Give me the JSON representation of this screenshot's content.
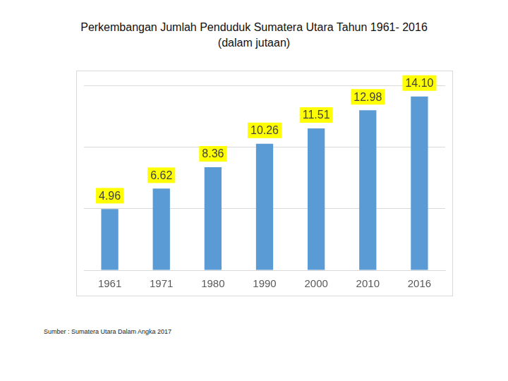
{
  "chart_data": {
    "type": "bar",
    "title": "Perkembangan Jumlah Penduduk  Sumatera Utara  Tahun 1961- 2016",
    "subtitle": "(dalam jutaan)",
    "annotations": [
      "Sumber : Sumatera Utara Dalam Angka 2017"
    ],
    "categories": [
      "1961",
      "1971",
      "1980",
      "1990",
      "2000",
      "2010",
      "2016"
    ],
    "values": [
      4.96,
      6.62,
      8.36,
      10.26,
      11.51,
      12.98,
      14.1
    ],
    "value_labels": [
      "4.96",
      "6.62",
      "8.36",
      "10.26",
      "11.51",
      "12.98",
      "14.10"
    ],
    "color": "#5b9bd5",
    "ylim": [
      0,
      15
    ],
    "yticks": [
      0,
      5,
      10,
      15
    ],
    "grid": true,
    "data_labels": true,
    "tick_labels": "x"
  }
}
